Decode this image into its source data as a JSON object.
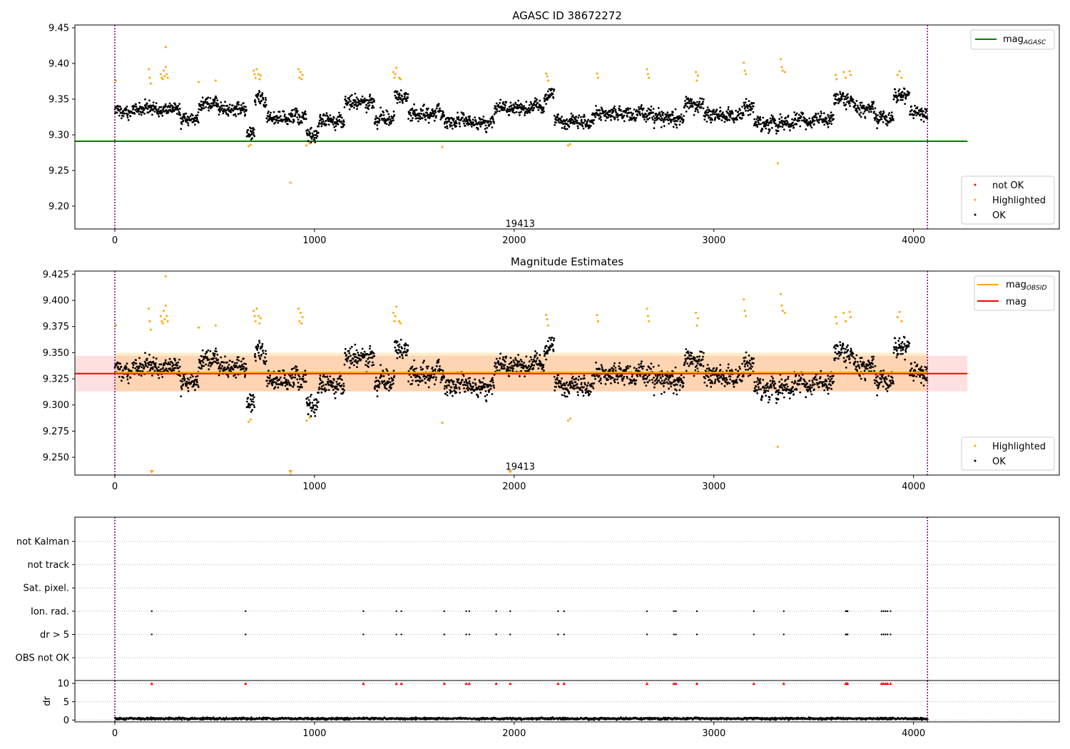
{
  "chart_data": [
    {
      "type": "scatter",
      "title": "AGASC ID 38672272",
      "xlim": [
        -200,
        4730
      ],
      "ylim": [
        9.168,
        9.454
      ],
      "x_ticks": [
        0,
        1000,
        2000,
        3000,
        4000
      ],
      "y_ticks": [
        9.2,
        9.25,
        9.3,
        9.35,
        9.4,
        9.45
      ],
      "y_tick_labels": [
        "9.20",
        "9.25",
        "9.30",
        "9.35",
        "9.40",
        "9.45"
      ],
      "vlines": [
        0,
        4070
      ],
      "mag_agasc": 9.291,
      "mag_agasc_span": [
        -200,
        4270
      ],
      "annotation": {
        "text": "19413",
        "x": 2030,
        "y": 9.175
      },
      "legend_top": [
        "mag_AGASC"
      ],
      "legend_bottom": [
        "not OK",
        "Highlighted",
        "OK"
      ],
      "ok_baseline": 9.332,
      "ok_segments": [
        {
          "x0": 0,
          "x1": 150,
          "mean": 9.335
        },
        {
          "x0": 150,
          "x1": 330,
          "mean": 9.338
        },
        {
          "x0": 330,
          "x1": 420,
          "mean": 9.322
        },
        {
          "x0": 420,
          "x1": 540,
          "mean": 9.342
        },
        {
          "x0": 540,
          "x1": 660,
          "mean": 9.335
        },
        {
          "x0": 660,
          "x1": 700,
          "mean": 9.302
        },
        {
          "x0": 700,
          "x1": 760,
          "mean": 9.352
        },
        {
          "x0": 760,
          "x1": 960,
          "mean": 9.325
        },
        {
          "x0": 960,
          "x1": 1020,
          "mean": 9.3
        },
        {
          "x0": 1020,
          "x1": 1150,
          "mean": 9.32
        },
        {
          "x0": 1150,
          "x1": 1300,
          "mean": 9.345
        },
        {
          "x0": 1300,
          "x1": 1400,
          "mean": 9.322
        },
        {
          "x0": 1400,
          "x1": 1470,
          "mean": 9.352
        },
        {
          "x0": 1470,
          "x1": 1650,
          "mean": 9.33
        },
        {
          "x0": 1650,
          "x1": 1900,
          "mean": 9.318
        },
        {
          "x0": 1900,
          "x1": 2150,
          "mean": 9.338
        },
        {
          "x0": 2150,
          "x1": 2200,
          "mean": 9.355
        },
        {
          "x0": 2200,
          "x1": 2400,
          "mean": 9.318
        },
        {
          "x0": 2400,
          "x1": 2700,
          "mean": 9.33
        },
        {
          "x0": 2700,
          "x1": 2850,
          "mean": 9.322
        },
        {
          "x0": 2850,
          "x1": 2950,
          "mean": 9.342
        },
        {
          "x0": 2950,
          "x1": 3150,
          "mean": 9.328
        },
        {
          "x0": 3150,
          "x1": 3200,
          "mean": 9.34
        },
        {
          "x0": 3200,
          "x1": 3400,
          "mean": 9.315
        },
        {
          "x0": 3400,
          "x1": 3600,
          "mean": 9.322
        },
        {
          "x0": 3600,
          "x1": 3700,
          "mean": 9.35
        },
        {
          "x0": 3700,
          "x1": 3800,
          "mean": 9.338
        },
        {
          "x0": 3800,
          "x1": 3900,
          "mean": 9.325
        },
        {
          "x0": 3900,
          "x1": 3980,
          "mean": 9.355
        },
        {
          "x0": 3980,
          "x1": 4070,
          "mean": 9.332
        }
      ],
      "highlighted": {
        "x": [
          5,
          170,
          175,
          180,
          230,
          235,
          240,
          245,
          250,
          255,
          260,
          265,
          255,
          420,
          505,
          670,
          680,
          695,
          700,
          705,
          710,
          720,
          725,
          730,
          880,
          920,
          925,
          930,
          935,
          940,
          960,
          975,
          1395,
          1400,
          1405,
          1410,
          1425,
          1430,
          1640,
          2160,
          2165,
          2170,
          2270,
          2280,
          2415,
          2420,
          2665,
          2670,
          2675,
          2910,
          2915,
          2920,
          3150,
          3155,
          3160,
          3320,
          3335,
          3340,
          3345,
          3355,
          3610,
          3615,
          3650,
          3660,
          3680,
          3685,
          3920,
          3930,
          3940
        ],
        "y": [
          9.376,
          9.392,
          9.38,
          9.372,
          9.385,
          9.38,
          9.378,
          9.39,
          9.382,
          9.395,
          9.385,
          9.38,
          9.423,
          9.374,
          9.376,
          9.284,
          9.286,
          9.39,
          9.385,
          9.38,
          9.392,
          9.385,
          9.378,
          9.383,
          9.233,
          9.392,
          9.38,
          9.388,
          9.378,
          9.384,
          9.285,
          9.288,
          9.388,
          9.38,
          9.385,
          9.394,
          9.38,
          9.378,
          9.283,
          9.386,
          9.382,
          9.376,
          9.285,
          9.287,
          9.386,
          9.38,
          9.392,
          9.385,
          9.38,
          9.388,
          9.376,
          9.383,
          9.401,
          9.39,
          9.385,
          9.26,
          9.406,
          9.395,
          9.39,
          9.388,
          9.384,
          9.378,
          9.388,
          9.38,
          9.389,
          9.384,
          9.384,
          9.389,
          9.38
        ],
        "color": "#ffa500"
      },
      "not_ok": {
        "x": [],
        "y": []
      }
    },
    {
      "type": "scatter",
      "title": "Magnitude Estimates",
      "xlim": [
        -200,
        4730
      ],
      "ylim": [
        9.233,
        9.428
      ],
      "x_ticks": [
        0,
        1000,
        2000,
        3000,
        4000
      ],
      "y_ticks": [
        9.25,
        9.275,
        9.3,
        9.325,
        9.35,
        9.375,
        9.4,
        9.425
      ],
      "y_tick_labels": [
        "9.250",
        "9.275",
        "9.300",
        "9.325",
        "9.350",
        "9.375",
        "9.400",
        "9.425"
      ],
      "vlines": [
        0,
        4070
      ],
      "mag": 9.33,
      "mag_band": [
        9.313,
        9.347
      ],
      "mag_span": [
        -200,
        4270
      ],
      "mag_obsid": 9.331,
      "mag_obsid_band": [
        9.313,
        9.35
      ],
      "mag_obsid_span": [
        0,
        4070
      ],
      "annotation": {
        "text": "19413",
        "x": 2030,
        "y": 9.241
      },
      "offscale_markers_x": [
        185,
        880,
        1980
      ],
      "legend_top": [
        "mag_OBSID",
        "mag"
      ],
      "legend_bottom": [
        "Highlighted",
        "OK"
      ]
    },
    {
      "type": "scatter",
      "title": "",
      "xlim": [
        -200,
        4730
      ],
      "categories": [
        "not Kalman",
        "not track",
        "Sat. pixel.",
        "Ion. rad.",
        "dr > 5",
        "OBS not OK"
      ],
      "flag_x": [
        185,
        655,
        1245,
        1410,
        1435,
        1650,
        1760,
        1775,
        1910,
        1980,
        2220,
        2250,
        2665,
        2800,
        2810,
        2915,
        3200,
        3350,
        3660,
        3665,
        3670,
        3840,
        3850,
        3860,
        3870,
        3885
      ],
      "flag_rows": [
        "Ion. rad.",
        "dr > 5"
      ],
      "vlines": [
        0,
        4070
      ]
    },
    {
      "type": "scatter",
      "title": "",
      "ylabel": "dr",
      "xlim": [
        -200,
        4730
      ],
      "ylim": [
        -0.5,
        10.8
      ],
      "x_ticks": [
        0,
        1000,
        2000,
        3000,
        4000
      ],
      "y_ticks": [
        0,
        5,
        10
      ],
      "capped_value": 10,
      "capped_x": [
        185,
        655,
        1245,
        1410,
        1435,
        1650,
        1760,
        1775,
        1910,
        1980,
        2220,
        2250,
        2665,
        2800,
        2810,
        2915,
        3200,
        3350,
        3660,
        3665,
        3670,
        3840,
        3850,
        3860,
        3870,
        3885
      ],
      "dr_typical": 0.4,
      "vlines": [
        0,
        4070
      ]
    }
  ],
  "colors": {
    "ok": "#000000",
    "highlighted": "#ffa500",
    "not_ok": "#ff0000",
    "mag_agasc": "#008000",
    "mag_obsid": "#ffa500",
    "mag": "#ff0000",
    "vline": "#800080",
    "grid": "#b0b0b0"
  },
  "legend": {
    "mag_agasc_main": "mag",
    "mag_agasc_sub": "AGASC",
    "not_ok": "not OK",
    "highlighted": "Highlighted",
    "ok": "OK",
    "mag_obsid_main": "mag",
    "mag_obsid_sub": "OBSID",
    "mag": "mag"
  }
}
